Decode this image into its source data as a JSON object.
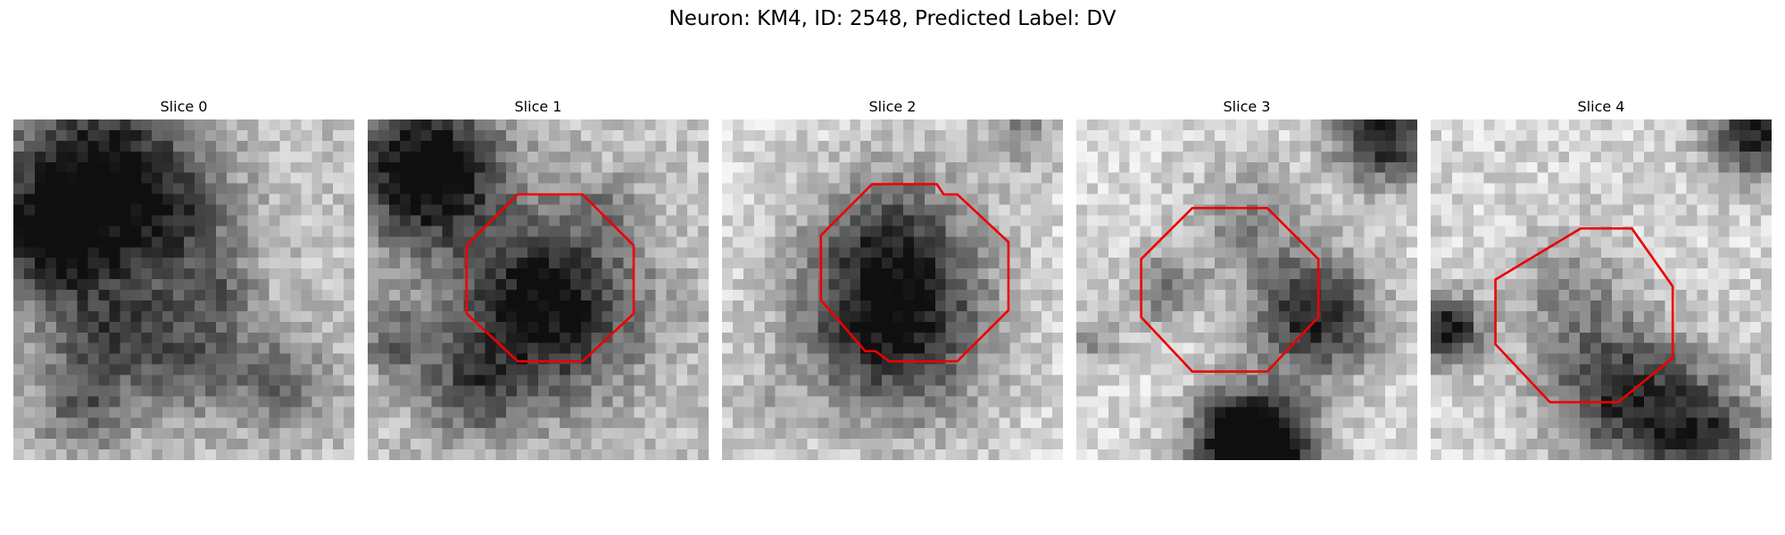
{
  "figure": {
    "title": "Neuron: KM4, ID: 2548, Predicted Label: DV"
  },
  "contour_color": "#ee0000",
  "slices": [
    {
      "title": "Slice 0",
      "blobs": [
        [
          0.25,
          0.18,
          0.2,
          0.85
        ],
        [
          0.1,
          0.35,
          0.1,
          0.55
        ],
        [
          0.5,
          0.3,
          0.12,
          0.3
        ],
        [
          0.28,
          0.62,
          0.14,
          0.45
        ],
        [
          0.55,
          0.7,
          0.12,
          0.4
        ],
        [
          0.2,
          0.85,
          0.1,
          0.35
        ],
        [
          0.8,
          0.78,
          0.1,
          0.35
        ],
        [
          0.6,
          0.5,
          0.08,
          0.25
        ]
      ],
      "base": 0.22,
      "seed": 11,
      "contour": null
    },
    {
      "title": "Slice 1",
      "blobs": [
        [
          0.17,
          0.15,
          0.15,
          0.95
        ],
        [
          0.52,
          0.55,
          0.19,
          0.85
        ],
        [
          0.08,
          0.65,
          0.08,
          0.35
        ],
        [
          0.3,
          0.8,
          0.1,
          0.4
        ],
        [
          0.7,
          0.25,
          0.06,
          0.2
        ]
      ],
      "base": 0.22,
      "seed": 23,
      "contour": [
        [
          0.44,
          0.22
        ],
        [
          0.63,
          0.22
        ],
        [
          0.78,
          0.37
        ],
        [
          0.78,
          0.57
        ],
        [
          0.63,
          0.71
        ],
        [
          0.44,
          0.71
        ],
        [
          0.29,
          0.57
        ],
        [
          0.29,
          0.37
        ]
      ]
    },
    {
      "title": "Slice 2",
      "blobs": [
        [
          0.5,
          0.6,
          0.2,
          0.85
        ],
        [
          0.5,
          0.33,
          0.16,
          0.4
        ],
        [
          0.88,
          0.04,
          0.08,
          0.35
        ],
        [
          0.1,
          0.85,
          0.06,
          0.18
        ]
      ],
      "base": 0.12,
      "seed": 37,
      "contour": [
        [
          0.44,
          0.19
        ],
        [
          0.63,
          0.19
        ],
        [
          0.65,
          0.22
        ],
        [
          0.69,
          0.22
        ],
        [
          0.84,
          0.36
        ],
        [
          0.84,
          0.56
        ],
        [
          0.69,
          0.71
        ],
        [
          0.49,
          0.71
        ],
        [
          0.45,
          0.68
        ],
        [
          0.42,
          0.68
        ],
        [
          0.29,
          0.53
        ],
        [
          0.29,
          0.34
        ]
      ]
    },
    {
      "title": "Slice 3",
      "blobs": [
        [
          0.7,
          0.58,
          0.13,
          0.8
        ],
        [
          0.47,
          0.93,
          0.1,
          0.95
        ],
        [
          0.6,
          0.98,
          0.1,
          0.75
        ],
        [
          0.9,
          0.05,
          0.1,
          0.85
        ],
        [
          0.25,
          0.5,
          0.08,
          0.4
        ],
        [
          0.5,
          0.3,
          0.12,
          0.35
        ],
        [
          0.05,
          0.65,
          0.06,
          0.3
        ]
      ],
      "base": 0.12,
      "seed": 51,
      "contour": [
        [
          0.34,
          0.26
        ],
        [
          0.56,
          0.26
        ],
        [
          0.71,
          0.41
        ],
        [
          0.71,
          0.58
        ],
        [
          0.56,
          0.74
        ],
        [
          0.34,
          0.74
        ],
        [
          0.19,
          0.58
        ],
        [
          0.19,
          0.41
        ]
      ]
    },
    {
      "title": "Slice 4",
      "blobs": [
        [
          0.05,
          0.62,
          0.07,
          0.85
        ],
        [
          0.55,
          0.8,
          0.15,
          0.7
        ],
        [
          0.8,
          0.92,
          0.12,
          0.65
        ],
        [
          0.95,
          0.03,
          0.1,
          0.8
        ],
        [
          0.4,
          0.5,
          0.12,
          0.3
        ]
      ],
      "base": 0.14,
      "seed": 67,
      "contour": [
        [
          0.44,
          0.32
        ],
        [
          0.59,
          0.32
        ],
        [
          0.71,
          0.49
        ],
        [
          0.71,
          0.7
        ],
        [
          0.55,
          0.83
        ],
        [
          0.35,
          0.83
        ],
        [
          0.19,
          0.66
        ],
        [
          0.19,
          0.47
        ]
      ]
    }
  ]
}
